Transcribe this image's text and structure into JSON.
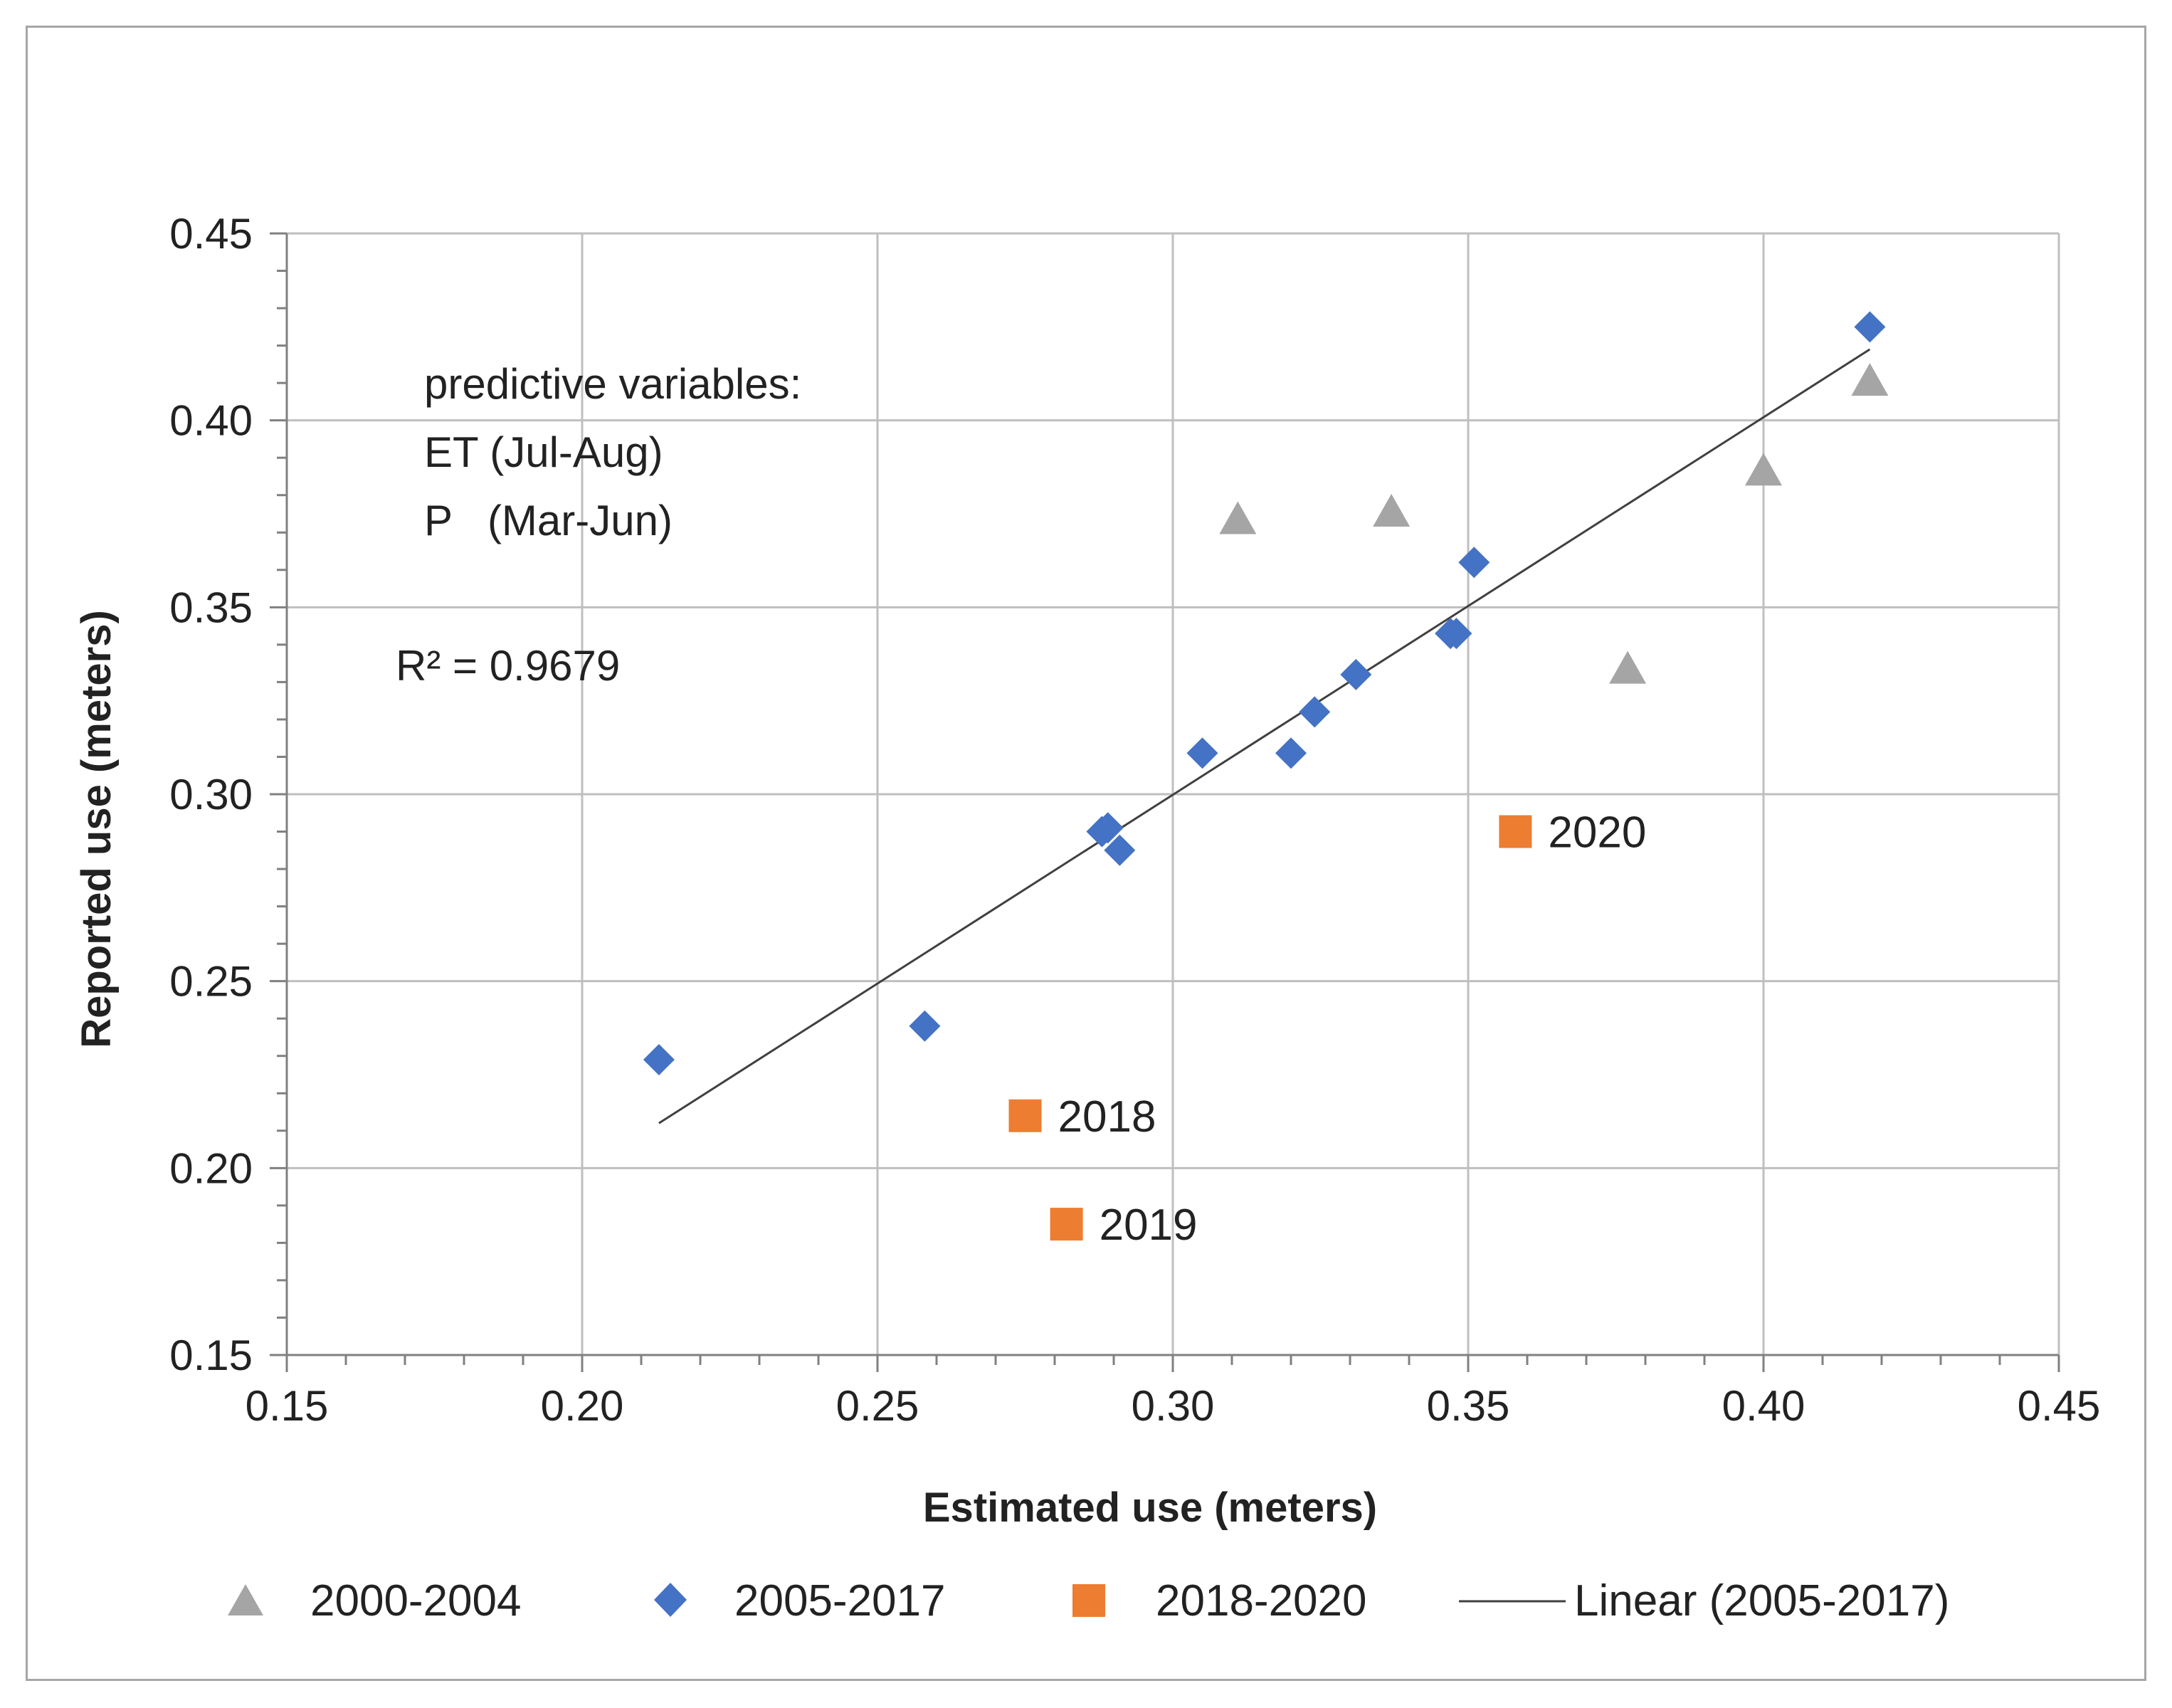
{
  "chart_data": {
    "type": "scatter",
    "title": "",
    "xlabel": "Estimated use (meters)",
    "ylabel": "Reported use (meters)",
    "xlim": [
      0.15,
      0.45
    ],
    "ylim": [
      0.15,
      0.45
    ],
    "grid": true,
    "x_ticks": [
      0.15,
      0.2,
      0.25,
      0.3,
      0.35,
      0.4,
      0.45
    ],
    "y_ticks": [
      0.15,
      0.2,
      0.25,
      0.3,
      0.35,
      0.4,
      0.45
    ],
    "x_tick_labels": [
      "0.15",
      "0.20",
      "0.25",
      "0.30",
      "0.35",
      "0.40",
      "0.45"
    ],
    "y_tick_labels": [
      "0.15",
      "0.20",
      "0.25",
      "0.30",
      "0.35",
      "0.40",
      "0.45"
    ],
    "legend_position": "bottom",
    "series": [
      {
        "name": "2000-2004",
        "marker": "triangle",
        "color": "#a5a5a5",
        "points": [
          [
            0.311,
            0.373
          ],
          [
            0.337,
            0.375
          ],
          [
            0.377,
            0.333
          ],
          [
            0.4,
            0.386
          ],
          [
            0.418,
            0.41
          ]
        ]
      },
      {
        "name": "2005-2017",
        "marker": "diamond",
        "color": "#4472c4",
        "points": [
          [
            0.213,
            0.229
          ],
          [
            0.258,
            0.238
          ],
          [
            0.288,
            0.29
          ],
          [
            0.289,
            0.291
          ],
          [
            0.291,
            0.285
          ],
          [
            0.305,
            0.311
          ],
          [
            0.32,
            0.311
          ],
          [
            0.324,
            0.322
          ],
          [
            0.331,
            0.332
          ],
          [
            0.347,
            0.343
          ],
          [
            0.348,
            0.343
          ],
          [
            0.351,
            0.362
          ],
          [
            0.418,
            0.425
          ]
        ]
      },
      {
        "name": "2018-2020",
        "marker": "square",
        "color": "#ed7d31",
        "points": [
          [
            0.275,
            0.214
          ],
          [
            0.282,
            0.185
          ],
          [
            0.358,
            0.29
          ]
        ],
        "point_labels": [
          "2018",
          "2019",
          "2020"
        ]
      }
    ],
    "trendline": {
      "name": "Linear (2005-2017)",
      "color": "#404040",
      "from": [
        0.213,
        0.212
      ],
      "to": [
        0.418,
        0.419
      ],
      "r_squared_label": "R² = 0.9679"
    },
    "annotation_lines": [
      "predictive variables:",
      "ET (Jul-Aug)",
      "P   (Mar-Jun)"
    ]
  }
}
